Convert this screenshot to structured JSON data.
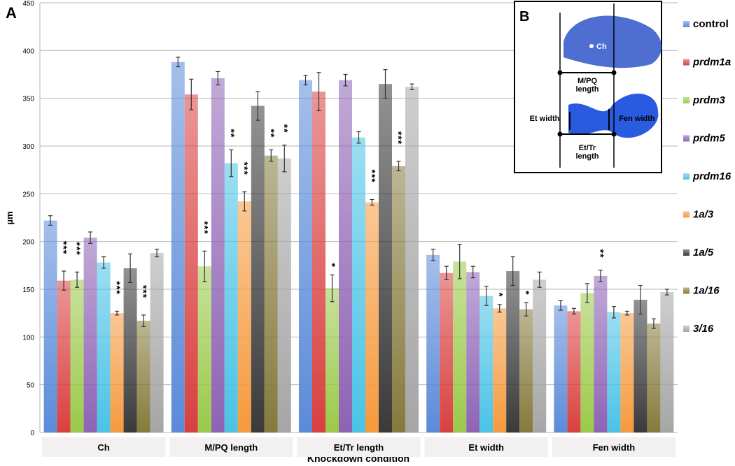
{
  "chart_data": {
    "type": "bar",
    "panel_label": "A",
    "y_label": "µm",
    "x_label": "Knockdown condition",
    "categories": [
      "Ch",
      "M/PQ length",
      "Et/Tr length",
      "Et width",
      "Fen width"
    ],
    "ylim": [
      0,
      450
    ],
    "yticks": [
      0,
      50,
      100,
      150,
      200,
      250,
      300,
      350,
      400,
      450
    ],
    "grid": true,
    "legend": "right",
    "series": [
      {
        "name": "control",
        "color": "#5b8bd9",
        "italic": false,
        "values": [
          222,
          388,
          369,
          186,
          133
        ],
        "errors": [
          5,
          5,
          5,
          6,
          5
        ],
        "stars": [
          null,
          null,
          null,
          null,
          null
        ]
      },
      {
        "name": "prdm1a",
        "color": "#d9403f",
        "italic": true,
        "values": [
          159,
          354,
          357,
          167,
          127
        ],
        "errors": [
          10,
          16,
          20,
          7,
          3
        ],
        "stars": [
          "***",
          null,
          null,
          null,
          null
        ]
      },
      {
        "name": "prdm3",
        "color": "#9bc94a",
        "italic": true,
        "values": [
          160,
          174,
          151,
          179,
          146
        ],
        "errors": [
          8,
          16,
          14,
          18,
          10
        ],
        "stars": [
          "***",
          "***",
          "*",
          null,
          null
        ]
      },
      {
        "name": "prdm5",
        "color": "#8e63b5",
        "italic": true,
        "values": [
          204,
          371,
          369,
          168,
          164
        ],
        "errors": [
          6,
          7,
          6,
          6,
          6
        ],
        "stars": [
          null,
          null,
          null,
          null,
          "**"
        ]
      },
      {
        "name": "prdm16",
        "color": "#4ac3e6",
        "italic": true,
        "values": [
          178,
          282,
          309,
          143,
          126
        ],
        "errors": [
          6,
          14,
          6,
          10,
          6
        ],
        "stars": [
          null,
          "**",
          null,
          null,
          null
        ]
      },
      {
        "name": "1a/3",
        "color": "#f59a3e",
        "italic": true,
        "values": [
          125,
          242,
          241,
          130,
          125
        ],
        "errors": [
          2,
          10,
          3,
          4,
          2
        ],
        "stars": [
          "***",
          "***",
          "***",
          "*",
          null
        ]
      },
      {
        "name": "1a/5",
        "color": "#3a3a3a",
        "italic": true,
        "values": [
          172,
          342,
          365,
          169,
          139
        ],
        "errors": [
          15,
          15,
          15,
          15,
          15
        ],
        "stars": [
          null,
          null,
          null,
          null,
          null
        ]
      },
      {
        "name": "1a/16",
        "color": "#857a3c",
        "italic": true,
        "values": [
          117,
          290,
          279,
          129,
          114
        ],
        "errors": [
          6,
          6,
          5,
          7,
          5
        ],
        "stars": [
          "***",
          "**",
          "***",
          "*",
          null
        ]
      },
      {
        "name": "3/16",
        "color": "#a6a6a6",
        "italic": true,
        "values": [
          188,
          287,
          362,
          160,
          147
        ],
        "errors": [
          4,
          14,
          3,
          8,
          3
        ],
        "stars": [
          null,
          "**",
          null,
          null,
          null
        ]
      }
    ],
    "inset": {
      "label": "B",
      "ch": "Ch",
      "mpq": "M/PQ length",
      "et_width": "Et width",
      "fen_width": "Fen width",
      "ettr": "Et/Tr length"
    }
  }
}
